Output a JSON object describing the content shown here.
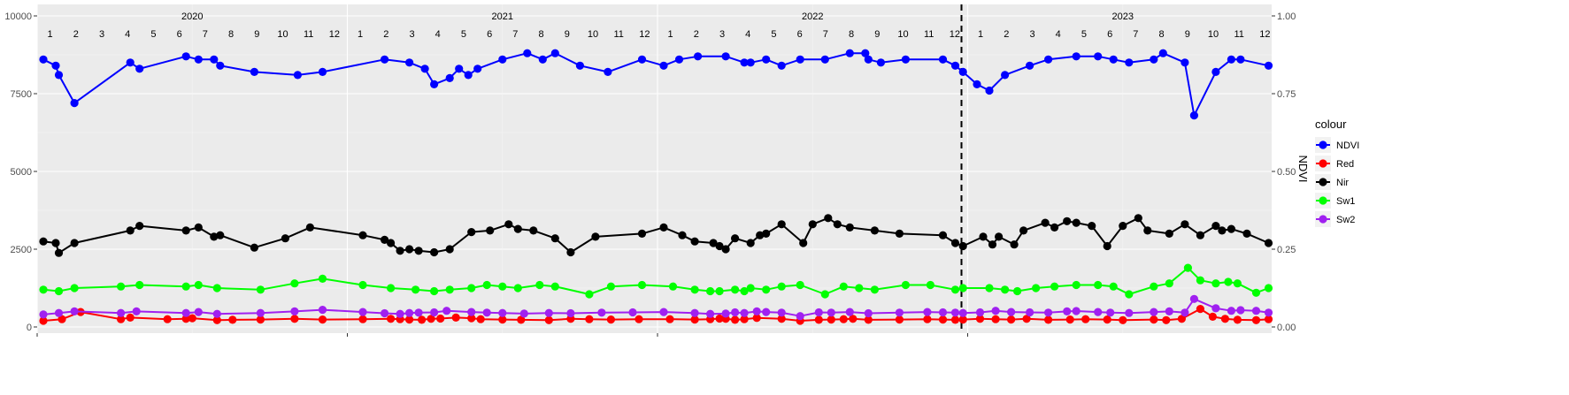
{
  "chart_data": {
    "type": "line",
    "title": "",
    "xlabel": "",
    "ylabel": "",
    "y_left": {
      "lim": [
        0,
        10000
      ],
      "ticks": [
        0,
        2500,
        5000,
        7500,
        10000
      ],
      "tick_labels": [
        "0",
        "2500",
        "5000",
        "7500",
        "10000"
      ]
    },
    "y_right": {
      "label": "NDVI",
      "lim": [
        0,
        1
      ],
      "ticks": [
        0,
        0.25,
        0.5,
        0.75,
        1.0
      ],
      "tick_labels": [
        "0.00",
        "0.25",
        "0.50",
        "0.75",
        "1.00"
      ]
    },
    "x_range": [
      2020.0,
      2023.98
    ],
    "years": [
      {
        "year": 2020,
        "label": "2020"
      },
      {
        "year": 2021,
        "label": "2021"
      },
      {
        "year": 2022,
        "label": "2022"
      },
      {
        "year": 2023,
        "label": "2023"
      }
    ],
    "month_labels": [
      "1",
      "2",
      "3",
      "4",
      "5",
      "6",
      "7",
      "8",
      "9",
      "10",
      "11",
      "12"
    ],
    "vline_x": 2022.98,
    "grid": true,
    "legend": {
      "title": "colour",
      "position": "right"
    },
    "series": [
      {
        "name": "NDVI",
        "color": "#0000FF",
        "axis": "right",
        "x": [
          2020.02,
          2020.06,
          2020.07,
          2020.12,
          2020.3,
          2020.33,
          2020.48,
          2020.52,
          2020.57,
          2020.59,
          2020.7,
          2020.84,
          2020.92,
          2021.12,
          2021.2,
          2021.25,
          2021.28,
          2021.33,
          2021.36,
          2021.39,
          2021.42,
          2021.5,
          2021.58,
          2021.63,
          2021.67,
          2021.75,
          2021.84,
          2021.95,
          2022.02,
          2022.07,
          2022.13,
          2022.22,
          2022.28,
          2022.3,
          2022.35,
          2022.4,
          2022.46,
          2022.54,
          2022.62,
          2022.67,
          2022.68,
          2022.72,
          2022.8,
          2022.92,
          2022.96,
          2022.985,
          2023.03,
          2023.07,
          2023.12,
          2023.2,
          2023.26,
          2023.35,
          2023.42,
          2023.47,
          2023.52,
          2023.6,
          2023.63,
          2023.7,
          2023.73,
          2023.8,
          2023.85,
          2023.88,
          2023.97
        ],
        "y": [
          0.86,
          0.84,
          0.81,
          0.72,
          0.85,
          0.83,
          0.87,
          0.86,
          0.86,
          0.84,
          0.82,
          0.81,
          0.82,
          0.86,
          0.85,
          0.83,
          0.78,
          0.8,
          0.83,
          0.81,
          0.83,
          0.86,
          0.88,
          0.86,
          0.88,
          0.84,
          0.82,
          0.86,
          0.84,
          0.86,
          0.87,
          0.87,
          0.85,
          0.85,
          0.86,
          0.84,
          0.86,
          0.86,
          0.88,
          0.88,
          0.86,
          0.85,
          0.86,
          0.86,
          0.84,
          0.82,
          0.78,
          0.76,
          0.81,
          0.84,
          0.86,
          0.87,
          0.87,
          0.86,
          0.85,
          0.86,
          0.88,
          0.85,
          0.68,
          0.82,
          0.86,
          0.86,
          0.84
        ]
      },
      {
        "name": "Red",
        "color": "#FF0000",
        "axis": "left",
        "x": [
          2020.02,
          2020.08,
          2020.14,
          2020.27,
          2020.3,
          2020.42,
          2020.48,
          2020.5,
          2020.58,
          2020.63,
          2020.72,
          2020.83,
          2020.92,
          2021.05,
          2021.14,
          2021.17,
          2021.2,
          2021.24,
          2021.27,
          2021.3,
          2021.35,
          2021.4,
          2021.43,
          2021.5,
          2021.56,
          2021.65,
          2021.72,
          2021.78,
          2021.85,
          2021.94,
          2022.04,
          2022.12,
          2022.17,
          2022.2,
          2022.22,
          2022.25,
          2022.28,
          2022.32,
          2022.4,
          2022.46,
          2022.52,
          2022.56,
          2022.6,
          2022.63,
          2022.68,
          2022.78,
          2022.87,
          2022.92,
          2022.96,
          2022.985,
          2023.04,
          2023.09,
          2023.14,
          2023.19,
          2023.26,
          2023.33,
          2023.38,
          2023.45,
          2023.5,
          2023.6,
          2023.64,
          2023.69,
          2023.75,
          2023.79,
          2023.83,
          2023.87,
          2023.93,
          2023.97
        ],
        "y": [
          200,
          250,
          480,
          250,
          300,
          250,
          260,
          280,
          220,
          230,
          240,
          260,
          240,
          250,
          260,
          250,
          240,
          230,
          260,
          270,
          300,
          280,
          250,
          240,
          230,
          220,
          260,
          250,
          240,
          250,
          250,
          240,
          250,
          270,
          260,
          230,
          250,
          290,
          260,
          200,
          230,
          240,
          250,
          260,
          230,
          240,
          250,
          240,
          230,
          240,
          260,
          250,
          240,
          260,
          230,
          240,
          250,
          240,
          220,
          240,
          220,
          260,
          580,
          330,
          260,
          230,
          220,
          250
        ]
      },
      {
        "name": "Nir",
        "color": "#000000",
        "axis": "left",
        "x": [
          2020.02,
          2020.06,
          2020.07,
          2020.12,
          2020.3,
          2020.33,
          2020.48,
          2020.52,
          2020.57,
          2020.59,
          2020.7,
          2020.8,
          2020.88,
          2021.05,
          2021.12,
          2021.14,
          2021.17,
          2021.2,
          2021.23,
          2021.28,
          2021.33,
          2021.4,
          2021.46,
          2021.52,
          2021.55,
          2021.6,
          2021.67,
          2021.72,
          2021.8,
          2021.95,
          2022.02,
          2022.08,
          2022.12,
          2022.18,
          2022.2,
          2022.22,
          2022.25,
          2022.3,
          2022.33,
          2022.35,
          2022.4,
          2022.47,
          2022.5,
          2022.55,
          2022.58,
          2022.62,
          2022.7,
          2022.78,
          2022.92,
          2022.96,
          2022.985,
          2023.05,
          2023.08,
          2023.1,
          2023.15,
          2023.18,
          2023.25,
          2023.28,
          2023.32,
          2023.35,
          2023.4,
          2023.45,
          2023.5,
          2023.55,
          2023.58,
          2023.65,
          2023.7,
          2023.75,
          2023.8,
          2023.82,
          2023.85,
          2023.9,
          2023.97
        ],
        "y": [
          2750,
          2700,
          2380,
          2700,
          3100,
          3250,
          3100,
          3200,
          2900,
          2950,
          2550,
          2850,
          3200,
          2950,
          2800,
          2700,
          2450,
          2500,
          2450,
          2400,
          2500,
          3050,
          3100,
          3300,
          3150,
          3100,
          2850,
          2400,
          2900,
          3000,
          3200,
          2950,
          2750,
          2700,
          2600,
          2500,
          2850,
          2700,
          2950,
          3000,
          3300,
          2700,
          3300,
          3500,
          3300,
          3200,
          3100,
          3000,
          2950,
          2700,
          2600,
          2900,
          2650,
          2900,
          2650,
          3100,
          3350,
          3200,
          3400,
          3350,
          3250,
          2600,
          3250,
          3500,
          3100,
          3000,
          3300,
          2950,
          3250,
          3100,
          3150,
          3000,
          2700
        ]
      },
      {
        "name": "Sw1",
        "color": "#00FF00",
        "axis": "left",
        "x": [
          2020.02,
          2020.07,
          2020.12,
          2020.27,
          2020.33,
          2020.48,
          2020.52,
          2020.58,
          2020.72,
          2020.83,
          2020.92,
          2021.05,
          2021.14,
          2021.22,
          2021.28,
          2021.33,
          2021.4,
          2021.45,
          2021.5,
          2021.55,
          2021.62,
          2021.67,
          2021.78,
          2021.85,
          2021.95,
          2022.05,
          2022.12,
          2022.17,
          2022.2,
          2022.25,
          2022.28,
          2022.3,
          2022.35,
          2022.4,
          2022.46,
          2022.54,
          2022.6,
          2022.65,
          2022.7,
          2022.8,
          2022.88,
          2022.96,
          2022.985,
          2023.07,
          2023.12,
          2023.16,
          2023.22,
          2023.28,
          2023.35,
          2023.42,
          2023.47,
          2023.52,
          2023.6,
          2023.65,
          2023.71,
          2023.75,
          2023.8,
          2023.84,
          2023.87,
          2023.93,
          2023.97
        ],
        "y": [
          1200,
          1150,
          1250,
          1300,
          1350,
          1300,
          1350,
          1250,
          1200,
          1400,
          1550,
          1350,
          1250,
          1200,
          1150,
          1200,
          1250,
          1350,
          1300,
          1250,
          1350,
          1300,
          1050,
          1300,
          1350,
          1300,
          1200,
          1150,
          1150,
          1200,
          1150,
          1250,
          1200,
          1300,
          1350,
          1050,
          1300,
          1250,
          1200,
          1350,
          1350,
          1200,
          1250,
          1250,
          1200,
          1150,
          1250,
          1300,
          1350,
          1350,
          1300,
          1050,
          1300,
          1400,
          1900,
          1500,
          1400,
          1450,
          1400,
          1100,
          1250
        ]
      },
      {
        "name": "Sw2",
        "color": "#A020F0",
        "axis": "left",
        "x": [
          2020.02,
          2020.07,
          2020.12,
          2020.27,
          2020.32,
          2020.48,
          2020.52,
          2020.58,
          2020.72,
          2020.83,
          2020.92,
          2021.05,
          2021.12,
          2021.17,
          2021.2,
          2021.23,
          2021.28,
          2021.32,
          2021.4,
          2021.45,
          2021.5,
          2021.57,
          2021.65,
          2021.72,
          2021.82,
          2021.92,
          2022.02,
          2022.12,
          2022.17,
          2022.22,
          2022.25,
          2022.28,
          2022.32,
          2022.35,
          2022.4,
          2022.46,
          2022.52,
          2022.56,
          2022.62,
          2022.68,
          2022.78,
          2022.87,
          2022.92,
          2022.96,
          2022.985,
          2023.04,
          2023.09,
          2023.14,
          2023.2,
          2023.26,
          2023.32,
          2023.35,
          2023.42,
          2023.46,
          2023.52,
          2023.6,
          2023.65,
          2023.7,
          2023.73,
          2023.8,
          2023.85,
          2023.88,
          2023.93,
          2023.97
        ],
        "y": [
          400,
          450,
          500,
          450,
          500,
          450,
          480,
          420,
          450,
          500,
          550,
          480,
          440,
          420,
          450,
          460,
          470,
          520,
          480,
          460,
          450,
          430,
          450,
          440,
          460,
          470,
          480,
          450,
          420,
          430,
          470,
          450,
          500,
          480,
          460,
          350,
          470,
          460,
          480,
          440,
          460,
          480,
          470,
          460,
          450,
          470,
          520,
          480,
          470,
          460,
          500,
          510,
          480,
          460,
          450,
          480,
          500,
          460,
          900,
          600,
          520,
          540,
          520,
          460
        ]
      }
    ]
  }
}
